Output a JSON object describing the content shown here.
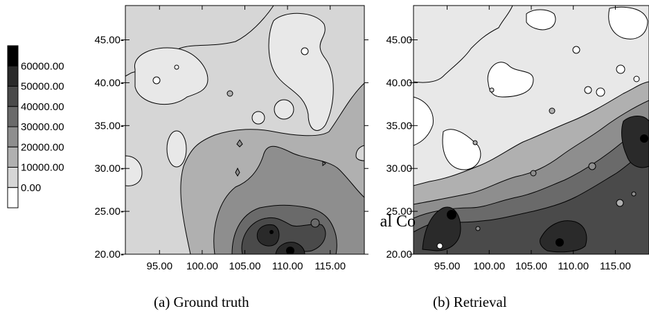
{
  "chart_data": {
    "type": "heatmap",
    "colorbar": {
      "labels": [
        "60000.00",
        "50000.00",
        "40000.00",
        "30000.00",
        "20000.00",
        "10000.00",
        "0.00"
      ],
      "colors": [
        "#000000",
        "#2a2a2a",
        "#4a4a4a",
        "#6a6a6a",
        "#8e8e8e",
        "#b0b0b0",
        "#d6d6d6",
        "#ffffff"
      ]
    },
    "panels": [
      {
        "id": "a",
        "caption": "(a) Ground truth",
        "xlim": [
          91,
          119
        ],
        "ylim": [
          20,
          49
        ],
        "xticks": [
          95,
          100,
          105,
          110,
          115
        ],
        "xtick_labels": [
          "95.00",
          "100.00",
          "105.00",
          "110.00",
          "115.00"
        ],
        "yticks": [
          20,
          25,
          30,
          35,
          40,
          45
        ],
        "ytick_labels": [
          "20.00-",
          "25.00-",
          "30.00-",
          "35.00-",
          "40.00-",
          "45.00-"
        ]
      },
      {
        "id": "b",
        "caption": "(b) Retrieval",
        "xlim": [
          91,
          119
        ],
        "ylim": [
          20,
          49
        ],
        "xticks": [
          95,
          100,
          105,
          110,
          115
        ],
        "xtick_labels": [
          "95.00",
          "100.00",
          "105.00",
          "110.00",
          "115.00"
        ],
        "yticks": [
          20,
          25,
          30,
          35,
          40,
          45
        ],
        "ytick_labels": [
          "20.00",
          "25.00",
          "30.00",
          "35.00",
          "40.00",
          "45.00"
        ]
      }
    ]
  },
  "overlay_text": "al Co"
}
